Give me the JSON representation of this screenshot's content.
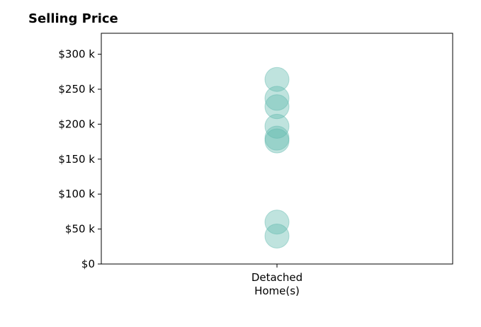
{
  "chart_data": {
    "type": "scatter",
    "title": "Selling Price",
    "categories": [
      "Detached\nHome(s)"
    ],
    "y_tick_labels": [
      "$0",
      "$50 k",
      "$100 k",
      "$150 k",
      "$200 k",
      "$250 k",
      "$300 k"
    ],
    "y_ticks": [
      0,
      50000,
      100000,
      150000,
      200000,
      250000,
      300000
    ],
    "ylim": [
      0,
      330000
    ],
    "points": [
      {
        "category": 0,
        "y": 264000
      },
      {
        "category": 0,
        "y": 237000
      },
      {
        "category": 0,
        "y": 225000
      },
      {
        "category": 0,
        "y": 197000
      },
      {
        "category": 0,
        "y": 180000
      },
      {
        "category": 0,
        "y": 176000
      },
      {
        "category": 0,
        "y": 60000
      },
      {
        "category": 0,
        "y": 40000
      }
    ],
    "marker_color": "#5fb8ac",
    "grid": false
  }
}
